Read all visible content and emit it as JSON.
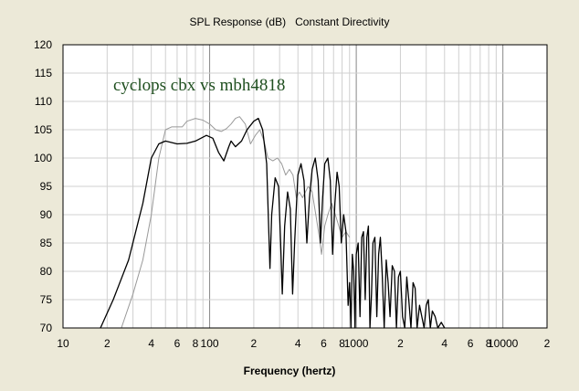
{
  "chart_data": {
    "type": "line",
    "title": "SPL Response (dB)   Constant Directivity",
    "xlabel": "Frequency (hertz)",
    "ylabel": "",
    "xscale": "log",
    "xlim": [
      10,
      20000
    ],
    "ylim": [
      70,
      120
    ],
    "grid": true,
    "yticks": [
      "70",
      "75",
      "80",
      "85",
      "90",
      "95",
      "100",
      "105",
      "110",
      "115",
      "120"
    ],
    "xticks": [
      {
        "value": 10,
        "label": "10"
      },
      {
        "value": 20,
        "label": "2"
      },
      {
        "value": 40,
        "label": "4"
      },
      {
        "value": 60,
        "label": "6"
      },
      {
        "value": 80,
        "label": "8"
      },
      {
        "value": 100,
        "label": "100"
      },
      {
        "value": 200,
        "label": "2"
      },
      {
        "value": 400,
        "label": "4"
      },
      {
        "value": 600,
        "label": "6"
      },
      {
        "value": 800,
        "label": "8"
      },
      {
        "value": 1000,
        "label": "1000"
      },
      {
        "value": 2000,
        "label": "2"
      },
      {
        "value": 4000,
        "label": "4"
      },
      {
        "value": 6000,
        "label": "6"
      },
      {
        "value": 8000,
        "label": "8"
      },
      {
        "value": 10000,
        "label": "10000"
      },
      {
        "value": 20000,
        "label": "2"
      }
    ],
    "annotation": "cyclops cbx vs mbh4818",
    "series": [
      {
        "color": "#000000",
        "points": [
          [
            18,
            70
          ],
          [
            22,
            75
          ],
          [
            28,
            82
          ],
          [
            35,
            92
          ],
          [
            40,
            100
          ],
          [
            45,
            102.5
          ],
          [
            50,
            103
          ],
          [
            60,
            102.5
          ],
          [
            70,
            102.6
          ],
          [
            80,
            103
          ],
          [
            95,
            104
          ],
          [
            105,
            103.5
          ],
          [
            115,
            101
          ],
          [
            125,
            99.5
          ],
          [
            135,
            102
          ],
          [
            140,
            103
          ],
          [
            150,
            102
          ],
          [
            165,
            103
          ],
          [
            180,
            105
          ],
          [
            200,
            106.5
          ],
          [
            215,
            107
          ],
          [
            230,
            105
          ],
          [
            245,
            99
          ],
          [
            258,
            80.5
          ],
          [
            265,
            90
          ],
          [
            280,
            96.5
          ],
          [
            295,
            95
          ],
          [
            305,
            85
          ],
          [
            313,
            76
          ],
          [
            325,
            88
          ],
          [
            340,
            94
          ],
          [
            355,
            91
          ],
          [
            368,
            76
          ],
          [
            380,
            85
          ],
          [
            400,
            97
          ],
          [
            420,
            99
          ],
          [
            440,
            96
          ],
          [
            460,
            85
          ],
          [
            480,
            93
          ],
          [
            500,
            98
          ],
          [
            525,
            100
          ],
          [
            550,
            96
          ],
          [
            570,
            85
          ],
          [
            590,
            93
          ],
          [
            610,
            99
          ],
          [
            640,
            100
          ],
          [
            665,
            96
          ],
          [
            690,
            83
          ],
          [
            715,
            92
          ],
          [
            740,
            97.5
          ],
          [
            765,
            95
          ],
          [
            790,
            85
          ],
          [
            820,
            90
          ],
          [
            850,
            87
          ],
          [
            880,
            74
          ],
          [
            900,
            78
          ],
          [
            920,
            70
          ],
          [
            940,
            83
          ],
          [
            960,
            80
          ],
          [
            980,
            70
          ],
          [
            1000,
            83
          ],
          [
            1030,
            85
          ],
          [
            1060,
            72
          ],
          [
            1090,
            86
          ],
          [
            1120,
            87
          ],
          [
            1150,
            75
          ],
          [
            1180,
            86
          ],
          [
            1210,
            88
          ],
          [
            1240,
            70
          ],
          [
            1270,
            76
          ],
          [
            1300,
            85
          ],
          [
            1340,
            86
          ],
          [
            1380,
            72
          ],
          [
            1420,
            83
          ],
          [
            1460,
            86
          ],
          [
            1500,
            80
          ],
          [
            1550,
            70
          ],
          [
            1600,
            82
          ],
          [
            1650,
            78
          ],
          [
            1700,
            72
          ],
          [
            1760,
            81
          ],
          [
            1820,
            80
          ],
          [
            1880,
            70
          ],
          [
            1940,
            79
          ],
          [
            2000,
            80
          ],
          [
            2070,
            72
          ],
          [
            2140,
            70
          ],
          [
            2210,
            79
          ],
          [
            2280,
            75
          ],
          [
            2360,
            70
          ],
          [
            2440,
            78
          ],
          [
            2520,
            77
          ],
          [
            2600,
            70
          ],
          [
            2700,
            74
          ],
          [
            2800,
            72
          ],
          [
            2900,
            70
          ],
          [
            3000,
            74
          ],
          [
            3100,
            75
          ],
          [
            3200,
            70
          ],
          [
            3300,
            73
          ],
          [
            3450,
            72
          ],
          [
            3600,
            70
          ],
          [
            3800,
            71
          ],
          [
            4000,
            70
          ]
        ]
      },
      {
        "color": "#999999",
        "points": [
          [
            25,
            70
          ],
          [
            30,
            76
          ],
          [
            35,
            82
          ],
          [
            40,
            90
          ],
          [
            45,
            100
          ],
          [
            50,
            105
          ],
          [
            55,
            105.5
          ],
          [
            60,
            105.5
          ],
          [
            65,
            105.5
          ],
          [
            70,
            106.5
          ],
          [
            80,
            107
          ],
          [
            90,
            106.7
          ],
          [
            100,
            106
          ],
          [
            110,
            105
          ],
          [
            120,
            104.7
          ],
          [
            130,
            105.2
          ],
          [
            140,
            106
          ],
          [
            150,
            107
          ],
          [
            160,
            107.3
          ],
          [
            175,
            106
          ],
          [
            190,
            102.5
          ],
          [
            205,
            104
          ],
          [
            220,
            105
          ],
          [
            235,
            103
          ],
          [
            250,
            100
          ],
          [
            270,
            99.5
          ],
          [
            290,
            100
          ],
          [
            310,
            99
          ],
          [
            330,
            97
          ],
          [
            350,
            98
          ],
          [
            370,
            97
          ],
          [
            390,
            93
          ],
          [
            410,
            94
          ],
          [
            430,
            93
          ],
          [
            450,
            94
          ],
          [
            470,
            95
          ],
          [
            500,
            94
          ],
          [
            530,
            90
          ],
          [
            560,
            86
          ],
          [
            580,
            83
          ],
          [
            610,
            88
          ],
          [
            640,
            90
          ],
          [
            680,
            92
          ],
          [
            720,
            90
          ],
          [
            760,
            88
          ],
          [
            800,
            86
          ],
          [
            850,
            87
          ],
          [
            900,
            86
          ]
        ]
      }
    ]
  }
}
